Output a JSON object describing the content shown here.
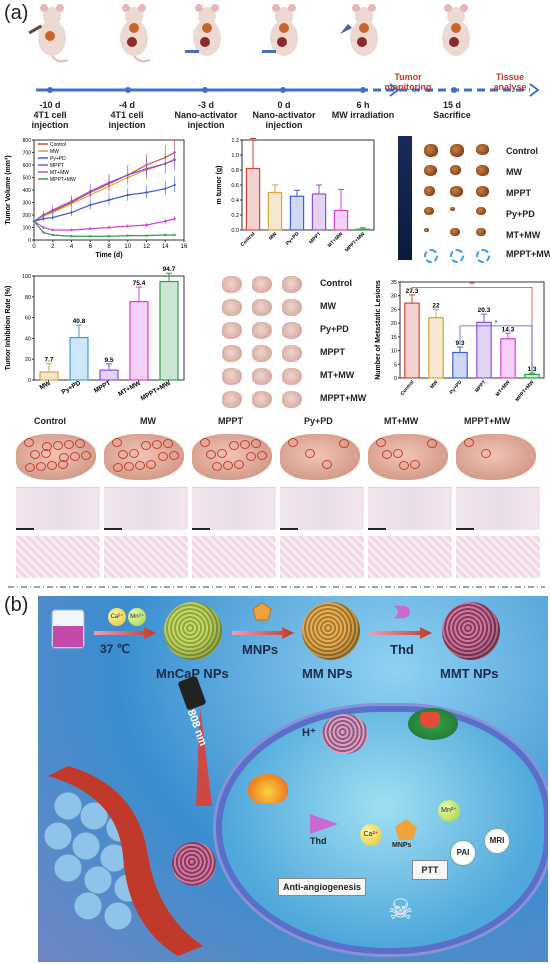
{
  "panel_a": "(a)",
  "panel_b": "(b)",
  "timeline": {
    "steps": [
      {
        "day": "-10 d",
        "text": "4T1 cell injection"
      },
      {
        "day": "-4 d",
        "text": "4T1 cell injection"
      },
      {
        "day": "-3 d",
        "text": "Nano-activator injection"
      },
      {
        "day": "0 d",
        "text": "Nano-activator injection"
      },
      {
        "day": "6 h",
        "text": "MW irradiation"
      },
      {
        "day": "15 d",
        "text": "Sacrifice"
      }
    ],
    "tumor_monitoring": "Tumor monitoring",
    "tissue_analyse": "Tissue analyse"
  },
  "chart_data": [
    {
      "type": "line",
      "xlabel": "Time (d)",
      "ylabel": "Tumor Volume (mm³)",
      "xlim": [
        0,
        16
      ],
      "ylim": [
        0,
        800
      ],
      "x": [
        0,
        1,
        2,
        4,
        6,
        8,
        10,
        12,
        14,
        15
      ],
      "xticks": [
        0,
        2,
        4,
        6,
        8,
        10,
        12,
        14,
        16
      ],
      "yticks": [
        0,
        100,
        200,
        300,
        400,
        500,
        600,
        700,
        800
      ],
      "legend_position": "top-left",
      "series": [
        {
          "name": "Control",
          "color": "#d0463b",
          "values": [
            150,
            200,
            230,
            300,
            380,
            450,
            520,
            600,
            660,
            700
          ]
        },
        {
          "name": "MW",
          "color": "#d9a23a",
          "values": [
            150,
            190,
            220,
            290,
            360,
            430,
            500,
            560,
            610,
            650
          ]
        },
        {
          "name": "Py+PD",
          "color": "#3d5fd1",
          "values": [
            150,
            170,
            180,
            220,
            280,
            320,
            360,
            380,
            410,
            440
          ]
        },
        {
          "name": "MPPT",
          "color": "#8f4fd3",
          "values": [
            150,
            200,
            240,
            310,
            390,
            460,
            520,
            570,
            610,
            640
          ]
        },
        {
          "name": "MT+MW",
          "color": "#d63fd6",
          "values": [
            150,
            100,
            80,
            80,
            90,
            100,
            110,
            120,
            150,
            170
          ]
        },
        {
          "name": "MPPT+MW",
          "color": "#2f9e4a",
          "values": [
            150,
            60,
            40,
            30,
            30,
            30,
            35,
            35,
            40,
            40
          ]
        }
      ]
    },
    {
      "type": "bar",
      "ylabel": "m tumor (g)",
      "categories": [
        "Control",
        "MW",
        "Py+PD",
        "MPPT",
        "MT+MW",
        "MPPT+MW"
      ],
      "values": [
        0.82,
        0.5,
        0.45,
        0.48,
        0.26,
        0.01
      ],
      "errors": [
        0.4,
        0.1,
        0.08,
        0.12,
        0.28,
        0.02
      ],
      "colors": [
        "#d0463b",
        "#d9a23a",
        "#3d5fd1",
        "#8f4fd3",
        "#d63fd6",
        "#2f9e4a"
      ],
      "ylim": [
        0,
        1.2
      ],
      "yticks": [
        0.0,
        0.2,
        0.4,
        0.6,
        0.8,
        1.0,
        1.2
      ]
    },
    {
      "type": "bar",
      "ylabel": "Tumor Inhibition Rate (%)",
      "categories": [
        "MW",
        "Py+PD",
        "MPPT",
        "MT+MW",
        "MPPT+MW"
      ],
      "values": [
        7.7,
        40.8,
        9.5,
        75.4,
        94.7
      ],
      "data_labels": [
        "7.7",
        "40.8",
        "9.5",
        "75.4",
        "94.7"
      ],
      "errors": [
        8,
        12,
        6,
        14,
        8
      ],
      "colors": [
        "#d9a23a",
        "#3d9ee0",
        "#8f4fd3",
        "#d63fd6",
        "#2f9e4a"
      ],
      "ylim": [
        0,
        100
      ],
      "yticks": [
        0,
        20,
        40,
        60,
        80,
        100
      ]
    },
    {
      "type": "bar",
      "ylabel": "Number of Metastatic Lesions",
      "categories": [
        "Control",
        "MW",
        "Py+PD",
        "MPPT",
        "MT+MW",
        "MPPT+MW"
      ],
      "values": [
        27.3,
        22,
        9.3,
        20.3,
        14.3,
        1.3
      ],
      "data_labels": [
        "27.3",
        "22",
        "9.3",
        "20.3",
        "14.3",
        "1.3"
      ],
      "errors": [
        3,
        3,
        2,
        3,
        2,
        0.5
      ],
      "colors": [
        "#d0463b",
        "#d9a23a",
        "#3d5fd1",
        "#8f4fd3",
        "#d63fd6",
        "#2f9e4a"
      ],
      "ylim": [
        0,
        35
      ],
      "yticks": [
        0,
        5,
        10,
        15,
        20,
        25,
        30,
        35
      ],
      "annotations": [
        "**",
        "*"
      ]
    }
  ],
  "tumor_photo_labels": [
    "Control",
    "MW",
    "MPPT",
    "Py+PD",
    "MT+MW",
    "MPPT+MW"
  ],
  "lung_photo_labels": [
    "Control",
    "MW",
    "Py+PD",
    "MPPT",
    "MT+MW",
    "MPPT+MW"
  ],
  "lung_row_labels": [
    "Control",
    "MW",
    "MPPT",
    "Py+PD",
    "MT+MW",
    "MPPT+MW"
  ],
  "panel_b_labels": {
    "temp": "37 ℃",
    "mnps": "MNPs",
    "thd": "Thd",
    "mncap": "MnCaP NPs",
    "mm": "MM NPs",
    "mmt": "MMT NPs",
    "laser": "808 nm",
    "hplus": "H⁺",
    "mn2": "Mn²⁺",
    "ca2": "Ca²⁺",
    "mnps_small": "MNPs",
    "thd_small": "Thd",
    "pai": "PAI",
    "mri": "MRI",
    "ptt": "PTT",
    "anti": "Anti-angiogenesis",
    "ca_bead": "Ca²⁺",
    "mn_bead": "Mn²⁺"
  },
  "colors": {
    "accent_red": "#c0392b",
    "timeline_blue": "#3f6fc6",
    "panel_b_bg": "#3a8ecf"
  }
}
